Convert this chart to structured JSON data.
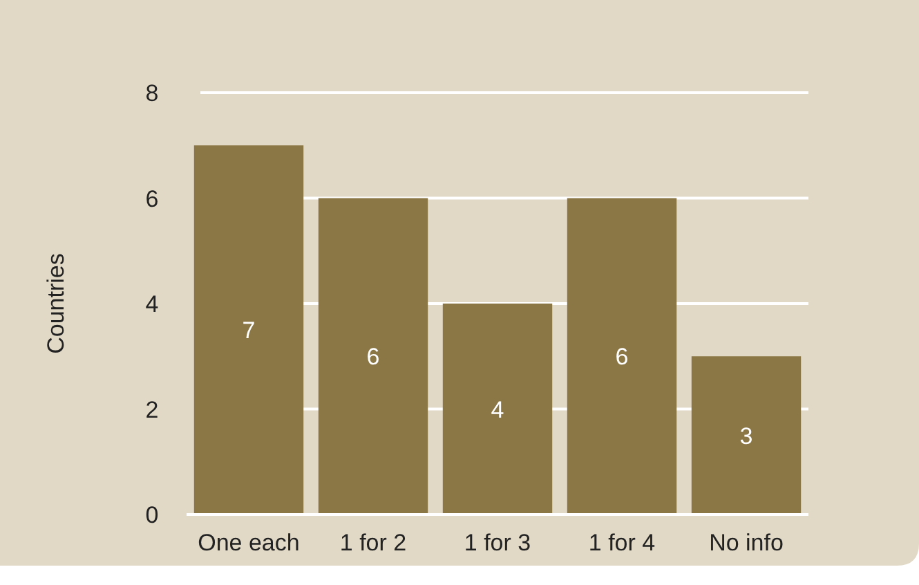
{
  "chart_data": {
    "type": "bar",
    "ylabel": "Countries",
    "categories": [
      "One each",
      "1 for 2",
      "1 for 3",
      "1 for 4",
      "No info"
    ],
    "values": [
      7,
      6,
      4,
      6,
      3
    ],
    "color": "#8b7646",
    "ylim": [
      0,
      8
    ],
    "yticks": [
      0,
      2,
      4,
      6,
      8
    ],
    "grid": "y",
    "data_labels": true
  }
}
